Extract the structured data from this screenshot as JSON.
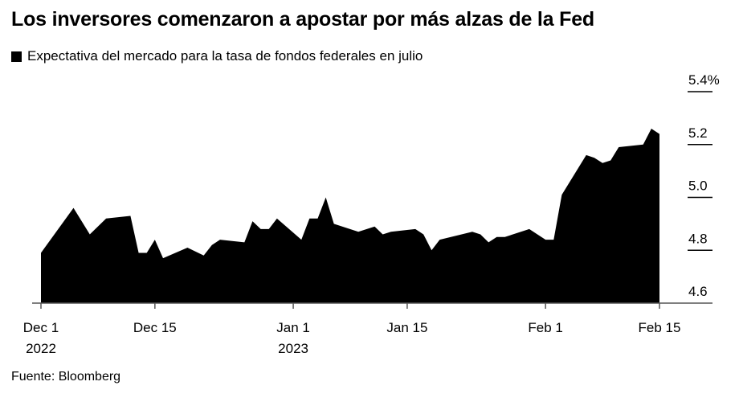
{
  "title": "Los inversores comenzaron a apostar por más alzas de la Fed",
  "source": "Fuente: Bloomberg",
  "chart_data": {
    "type": "area",
    "title": "Los inversores comenzaron a apostar por más alzas de la Fed",
    "series": [
      {
        "name": "Expectativa del mercado para la tasa de fondos federales en julio",
        "color": "#000000",
        "points": [
          [
            "2022-12-01",
            4.79
          ],
          [
            "2022-12-05",
            4.96
          ],
          [
            "2022-12-07",
            4.86
          ],
          [
            "2022-12-09",
            4.92
          ],
          [
            "2022-12-12",
            4.93
          ],
          [
            "2022-12-13",
            4.79
          ],
          [
            "2022-12-14",
            4.79
          ],
          [
            "2022-12-15",
            4.84
          ],
          [
            "2022-12-16",
            4.77
          ],
          [
            "2022-12-19",
            4.81
          ],
          [
            "2022-12-21",
            4.78
          ],
          [
            "2022-12-22",
            4.82
          ],
          [
            "2022-12-23",
            4.84
          ],
          [
            "2022-12-26",
            4.83
          ],
          [
            "2022-12-27",
            4.91
          ],
          [
            "2022-12-28",
            4.88
          ],
          [
            "2022-12-29",
            4.88
          ],
          [
            "2022-12-30",
            4.92
          ],
          [
            "2023-01-02",
            4.84
          ],
          [
            "2023-01-03",
            4.92
          ],
          [
            "2023-01-04",
            4.92
          ],
          [
            "2023-01-05",
            5.0
          ],
          [
            "2023-01-06",
            4.9
          ],
          [
            "2023-01-09",
            4.87
          ],
          [
            "2023-01-11",
            4.89
          ],
          [
            "2023-01-12",
            4.86
          ],
          [
            "2023-01-13",
            4.87
          ],
          [
            "2023-01-16",
            4.88
          ],
          [
            "2023-01-17",
            4.86
          ],
          [
            "2023-01-18",
            4.8
          ],
          [
            "2023-01-19",
            4.84
          ],
          [
            "2023-01-23",
            4.87
          ],
          [
            "2023-01-24",
            4.86
          ],
          [
            "2023-01-25",
            4.83
          ],
          [
            "2023-01-26",
            4.85
          ],
          [
            "2023-01-27",
            4.85
          ],
          [
            "2023-01-30",
            4.88
          ],
          [
            "2023-01-31",
            4.86
          ],
          [
            "2023-02-01",
            4.84
          ],
          [
            "2023-02-02",
            4.84
          ],
          [
            "2023-02-03",
            5.01
          ],
          [
            "2023-02-06",
            5.16
          ],
          [
            "2023-02-07",
            5.15
          ],
          [
            "2023-02-08",
            5.13
          ],
          [
            "2023-02-09",
            5.14
          ],
          [
            "2023-02-10",
            5.19
          ],
          [
            "2023-02-13",
            5.2
          ],
          [
            "2023-02-14",
            5.26
          ],
          [
            "2023-02-15",
            5.24
          ]
        ]
      }
    ],
    "ylim": [
      4.6,
      5.4
    ],
    "yticks": [
      {
        "value": 5.4,
        "label": "5.4%"
      },
      {
        "value": 5.2,
        "label": "5.2"
      },
      {
        "value": 5.0,
        "label": "5.0"
      },
      {
        "value": 4.8,
        "label": "4.8"
      },
      {
        "value": 4.6,
        "label": "4.6"
      }
    ],
    "y_axis_side": "right",
    "xlim": [
      "2022-12-01",
      "2023-02-15"
    ],
    "xticks": [
      {
        "date": "2022-12-01",
        "label": "Dec 1",
        "sublabel": "2022"
      },
      {
        "date": "2022-12-15",
        "label": "Dec 15",
        "sublabel": ""
      },
      {
        "date": "2023-01-01",
        "label": "Jan 1",
        "sublabel": "2023"
      },
      {
        "date": "2023-01-15",
        "label": "Jan 15",
        "sublabel": ""
      },
      {
        "date": "2023-02-01",
        "label": "Feb 1",
        "sublabel": ""
      },
      {
        "date": "2023-02-15",
        "label": "Feb 15",
        "sublabel": ""
      }
    ],
    "legend": "top-left",
    "grid": false
  }
}
